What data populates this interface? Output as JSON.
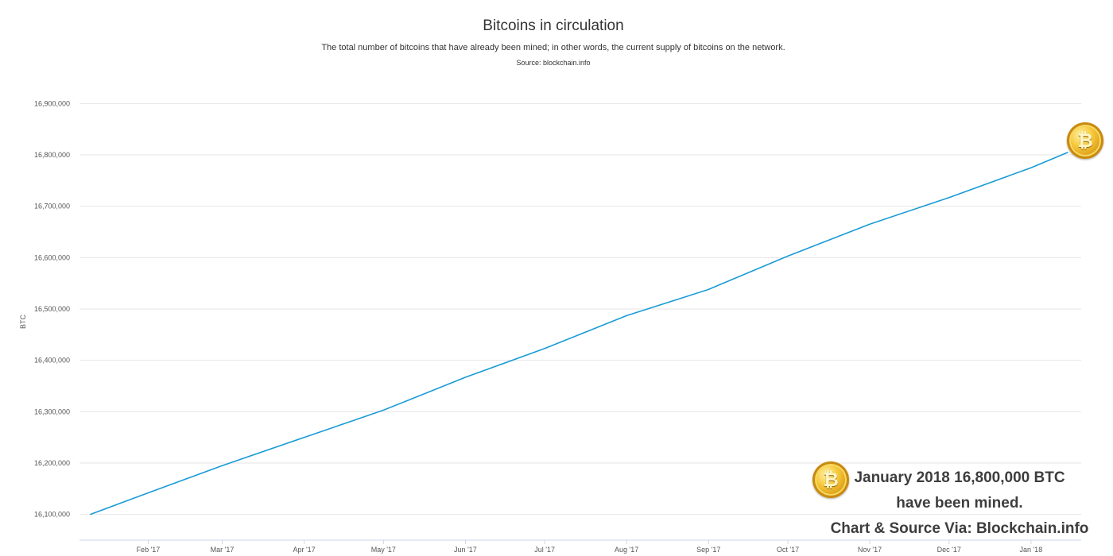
{
  "chart_data": {
    "type": "line",
    "title": "Bitcoins in circulation",
    "subtitle": "The total number of bitcoins that have already been mined; in other words, the current supply of bitcoins on the network.",
    "source": "Source: blockchain.info",
    "ylabel": "BTC",
    "xlabel": "",
    "ylim": [
      16050000,
      16950000
    ],
    "grid": true,
    "y_ticks": [
      16100000,
      16200000,
      16300000,
      16400000,
      16500000,
      16600000,
      16700000,
      16800000,
      16900000
    ],
    "y_tick_labels": [
      "16,100,000",
      "16,200,000",
      "16,300,000",
      "16,400,000",
      "16,500,000",
      "16,600,000",
      "16,700,000",
      "16,800,000",
      "16,900,000"
    ],
    "x_ticks": [
      "2017-02-01",
      "2017-03-01",
      "2017-04-01",
      "2017-05-01",
      "2017-06-01",
      "2017-07-01",
      "2017-08-01",
      "2017-09-01",
      "2017-10-01",
      "2017-11-01",
      "2017-12-01",
      "2018-01-01"
    ],
    "x_tick_labels": [
      "Feb '17",
      "Mar '17",
      "Apr '17",
      "May '17",
      "Jun '17",
      "Jul '17",
      "Aug '17",
      "Sep '17",
      "Oct '17",
      "Nov '17",
      "Dec '17",
      "Jan '18"
    ],
    "xlim": [
      "2017-01-06",
      "2018-01-20"
    ],
    "series": [
      {
        "name": "",
        "color": "#1a9bd7",
        "x": [
          "2017-01-10",
          "2017-02-01",
          "2017-03-01",
          "2017-04-01",
          "2017-05-01",
          "2017-06-01",
          "2017-07-01",
          "2017-08-01",
          "2017-09-01",
          "2017-10-01",
          "2017-11-01",
          "2017-12-01",
          "2018-01-01",
          "2018-01-15"
        ],
        "y": [
          16100000,
          16142000,
          16195000,
          16250000,
          16303000,
          16367000,
          16423000,
          16487000,
          16538000,
          16603000,
          16665000,
          16717000,
          16775000,
          16805000
        ]
      }
    ]
  },
  "annotation": {
    "line1": "January 2018 16,800,000 BTC",
    "line2": "have been mined.",
    "line3": "Chart & Source Via: Blockchain.info"
  },
  "icons": {
    "coin_symbol": "₿",
    "coin_icon": "bitcoin-coin-icon"
  }
}
